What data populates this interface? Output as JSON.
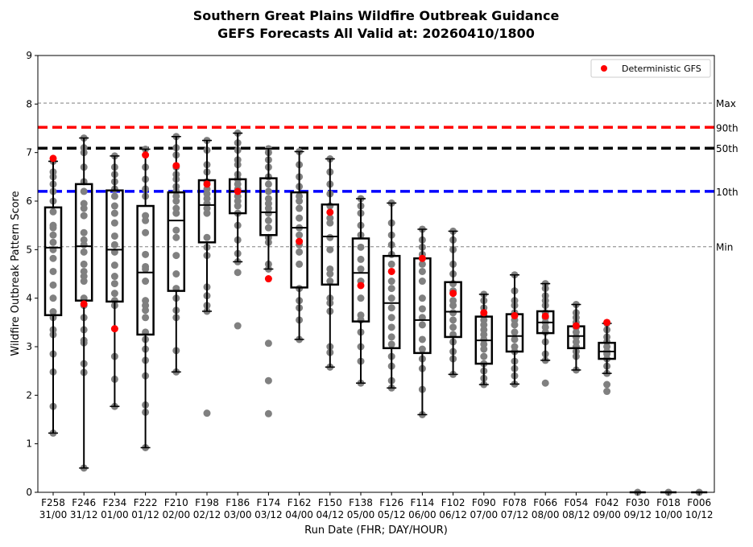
{
  "chart_data": {
    "type": "box",
    "title": "Southern Great Plains Wildfire Outbreak Guidance",
    "subtitle": "GEFS Forecasts All Valid at: 20260410/1800",
    "xlabel": "Run Date (FHR; DAY/HOUR)",
    "ylabel": "Wildfire Outbreak Pattern Score",
    "ylim": [
      0,
      9
    ],
    "yticks": [
      "0",
      "1",
      "2",
      "3",
      "4",
      "5",
      "6",
      "7",
      "8",
      "9"
    ],
    "legend": {
      "label": "Deterministic GFS",
      "placement": "top-right"
    },
    "reference_lines": [
      {
        "label": "Max",
        "value": 8.02,
        "color": "#808080",
        "style": "thin-dashed"
      },
      {
        "label": "90th",
        "value": 7.52,
        "color": "#ff0000",
        "style": "thick-dashed"
      },
      {
        "label": "50th",
        "value": 7.09,
        "color": "#000000",
        "style": "thick-dashed"
      },
      {
        "label": "10th",
        "value": 6.2,
        "color": "#0000ff",
        "style": "thick-dashed"
      },
      {
        "label": "Min",
        "value": 5.06,
        "color": "#808080",
        "style": "thin-dashed"
      }
    ],
    "categories": [
      {
        "fhr": "F258",
        "time": "31/00",
        "whislo": 1.22,
        "q1": 3.65,
        "med": 5.04,
        "q3": 5.87,
        "whishi": 6.82,
        "det": 6.88,
        "members": [
          1.22,
          1.77,
          2.48,
          2.85,
          3.25,
          3.35,
          3.6,
          3.72,
          4.0,
          4.27,
          4.55,
          4.82,
          5.0,
          5.15,
          5.3,
          5.45,
          5.5,
          5.78,
          6.0,
          6.2,
          6.35,
          6.5,
          6.6,
          6.82
        ]
      },
      {
        "fhr": "F246",
        "time": "31/12",
        "whislo": 0.5,
        "q1": 3.95,
        "med": 5.07,
        "q3": 6.35,
        "whishi": 7.3,
        "det": 3.88,
        "members": [
          0.5,
          2.47,
          2.65,
          3.08,
          3.13,
          3.35,
          3.6,
          3.85,
          4.0,
          4.35,
          4.45,
          4.55,
          4.7,
          4.95,
          5.1,
          5.2,
          5.35,
          5.7,
          5.85,
          5.95,
          6.2,
          6.4,
          6.7,
          7.0,
          7.1,
          7.3
        ]
      },
      {
        "fhr": "F234",
        "time": "01/00",
        "whislo": 1.77,
        "q1": 3.93,
        "med": 5.0,
        "q3": 6.22,
        "whishi": 6.93,
        "det": 3.37,
        "members": [
          1.77,
          2.33,
          2.8,
          3.85,
          3.95,
          4.1,
          4.3,
          4.45,
          4.68,
          4.95,
          5.1,
          5.28,
          5.55,
          5.75,
          5.9,
          6.1,
          6.25,
          6.4,
          6.55,
          6.7,
          6.93
        ]
      },
      {
        "fhr": "F222",
        "time": "01/12",
        "whislo": 0.92,
        "q1": 3.25,
        "med": 4.53,
        "q3": 5.9,
        "whishi": 7.07,
        "det": 6.95,
        "members": [
          0.92,
          1.65,
          1.8,
          2.4,
          2.72,
          2.95,
          3.15,
          3.3,
          3.6,
          3.75,
          3.85,
          3.95,
          4.35,
          4.6,
          4.65,
          4.9,
          5.35,
          5.6,
          5.7,
          6.1,
          6.25,
          6.45,
          6.7,
          7.07
        ]
      },
      {
        "fhr": "F210",
        "time": "02/00",
        "whislo": 2.48,
        "q1": 4.15,
        "med": 5.6,
        "q3": 6.18,
        "whishi": 7.33,
        "det": 6.73,
        "members": [
          2.48,
          2.92,
          3.6,
          3.75,
          4.0,
          4.2,
          4.5,
          4.88,
          5.25,
          5.4,
          5.75,
          5.85,
          6.0,
          6.1,
          6.2,
          6.3,
          6.45,
          6.55,
          6.7,
          6.95,
          7.1,
          7.33
        ]
      },
      {
        "fhr": "F198",
        "time": "02/12",
        "whislo": 3.73,
        "q1": 5.15,
        "med": 5.92,
        "q3": 6.43,
        "whishi": 7.25,
        "det": 6.35,
        "members": [
          1.63,
          3.73,
          3.85,
          4.05,
          4.23,
          4.88,
          5.05,
          5.25,
          5.75,
          5.85,
          5.95,
          6.05,
          6.15,
          6.25,
          6.4,
          6.6,
          6.75,
          7.05,
          7.25
        ]
      },
      {
        "fhr": "F186",
        "time": "03/00",
        "whislo": 4.75,
        "q1": 5.75,
        "med": 6.2,
        "q3": 6.45,
        "whishi": 7.4,
        "det": 6.2,
        "members": [
          3.43,
          4.53,
          4.75,
          4.92,
          5.2,
          5.5,
          5.75,
          5.9,
          6.0,
          6.1,
          6.25,
          6.35,
          6.45,
          6.55,
          6.75,
          6.85,
          7.05,
          7.2,
          7.4
        ]
      },
      {
        "fhr": "F174",
        "time": "03/12",
        "whislo": 4.6,
        "q1": 5.3,
        "med": 5.77,
        "q3": 6.47,
        "whishi": 7.08,
        "det": 4.4,
        "members": [
          1.62,
          2.3,
          3.07,
          4.6,
          4.7,
          5.15,
          5.25,
          5.45,
          5.6,
          5.75,
          5.85,
          5.95,
          6.05,
          6.2,
          6.35,
          6.5,
          6.7,
          6.85,
          7.0,
          7.08
        ]
      },
      {
        "fhr": "F162",
        "time": "04/00",
        "whislo": 3.15,
        "q1": 4.22,
        "med": 5.45,
        "q3": 6.18,
        "whishi": 7.02,
        "det": 5.17,
        "members": [
          3.15,
          3.55,
          3.8,
          3.95,
          4.2,
          4.7,
          4.95,
          5.1,
          5.3,
          5.45,
          5.65,
          5.85,
          6.0,
          6.1,
          6.3,
          6.5,
          6.75,
          7.02
        ]
      },
      {
        "fhr": "F150",
        "time": "04/12",
        "whislo": 2.58,
        "q1": 4.28,
        "med": 5.27,
        "q3": 5.93,
        "whishi": 6.87,
        "det": 5.77,
        "members": [
          2.58,
          2.88,
          3.0,
          3.73,
          3.9,
          4.0,
          4.35,
          4.5,
          4.6,
          5.0,
          5.25,
          5.55,
          5.65,
          5.9,
          6.15,
          6.35,
          6.6,
          6.87
        ]
      },
      {
        "fhr": "F138",
        "time": "05/00",
        "whislo": 2.25,
        "q1": 3.52,
        "med": 4.52,
        "q3": 5.23,
        "whishi": 6.05,
        "det": 4.26,
        "members": [
          2.25,
          2.7,
          3.0,
          3.3,
          3.55,
          3.65,
          4.0,
          4.35,
          4.6,
          4.8,
          5.05,
          5.3,
          5.5,
          5.75,
          5.9,
          6.05
        ]
      },
      {
        "fhr": "F126",
        "time": "05/12",
        "whislo": 2.15,
        "q1": 2.97,
        "med": 3.9,
        "q3": 4.87,
        "whishi": 5.96,
        "det": 4.55,
        "members": [
          2.15,
          2.3,
          2.6,
          2.8,
          3.05,
          3.2,
          3.4,
          3.6,
          3.8,
          4.0,
          4.2,
          4.35,
          4.7,
          4.9,
          5.1,
          5.3,
          5.55,
          5.96
        ]
      },
      {
        "fhr": "F114",
        "time": "06/00",
        "whislo": 1.6,
        "q1": 2.87,
        "med": 3.55,
        "q3": 4.82,
        "whishi": 5.42,
        "det": 4.82,
        "members": [
          1.6,
          2.12,
          2.55,
          2.75,
          2.95,
          3.15,
          3.45,
          3.6,
          3.78,
          4.0,
          4.35,
          4.55,
          4.7,
          4.9,
          5.05,
          5.2,
          5.42
        ]
      },
      {
        "fhr": "F102",
        "time": "06/12",
        "whislo": 2.43,
        "q1": 3.2,
        "med": 3.72,
        "q3": 4.33,
        "whishi": 5.38,
        "det": 4.1,
        "members": [
          2.43,
          2.75,
          2.9,
          3.1,
          3.25,
          3.4,
          3.55,
          3.7,
          3.85,
          3.95,
          4.15,
          4.3,
          4.5,
          4.7,
          5.0,
          5.2,
          5.38
        ]
      },
      {
        "fhr": "F090",
        "time": "07/00",
        "whislo": 2.22,
        "q1": 2.65,
        "med": 3.13,
        "q3": 3.62,
        "whishi": 4.08,
        "det": 3.7,
        "members": [
          2.22,
          2.35,
          2.5,
          2.65,
          2.8,
          2.95,
          3.05,
          3.15,
          3.25,
          3.35,
          3.45,
          3.55,
          3.65,
          3.8,
          3.95,
          4.08
        ]
      },
      {
        "fhr": "F078",
        "time": "07/12",
        "whislo": 2.23,
        "q1": 2.9,
        "med": 3.22,
        "q3": 3.67,
        "whishi": 4.48,
        "det": 3.64,
        "members": [
          2.23,
          2.4,
          2.55,
          2.7,
          2.9,
          3.0,
          3.15,
          3.3,
          3.45,
          3.55,
          3.7,
          3.85,
          3.95,
          4.15,
          4.48
        ]
      },
      {
        "fhr": "F066",
        "time": "08/00",
        "whislo": 2.72,
        "q1": 3.28,
        "med": 3.5,
        "q3": 3.73,
        "whishi": 4.3,
        "det": 3.63,
        "members": [
          2.25,
          2.72,
          2.85,
          3.1,
          3.3,
          3.4,
          3.5,
          3.6,
          3.7,
          3.85,
          3.95,
          4.05,
          4.2,
          4.3
        ]
      },
      {
        "fhr": "F054",
        "time": "08/12",
        "whislo": 2.52,
        "q1": 2.97,
        "med": 3.22,
        "q3": 3.42,
        "whishi": 3.87,
        "det": 3.43,
        "members": [
          2.52,
          2.8,
          2.9,
          3.0,
          3.1,
          3.2,
          3.3,
          3.4,
          3.5,
          3.6,
          3.7,
          3.87
        ]
      },
      {
        "fhr": "F042",
        "time": "09/00",
        "whislo": 2.45,
        "q1": 2.75,
        "med": 2.9,
        "q3": 3.08,
        "whishi": 3.48,
        "det": 3.5,
        "members": [
          2.08,
          2.22,
          2.45,
          2.6,
          2.75,
          2.85,
          2.9,
          3.0,
          3.1,
          3.2,
          3.35,
          3.48
        ]
      },
      {
        "fhr": "F030",
        "time": "09/12",
        "whislo": 0,
        "q1": 0,
        "med": 0,
        "q3": 0,
        "whishi": 0,
        "det": null,
        "members": [
          0
        ]
      },
      {
        "fhr": "F018",
        "time": "10/00",
        "whislo": 0,
        "q1": 0,
        "med": 0,
        "q3": 0,
        "whishi": 0,
        "det": null,
        "members": [
          0
        ]
      },
      {
        "fhr": "F006",
        "time": "10/12",
        "whislo": 0,
        "q1": 0,
        "med": 0,
        "q3": 0,
        "whishi": 0,
        "det": null,
        "members": [
          0
        ]
      }
    ]
  }
}
